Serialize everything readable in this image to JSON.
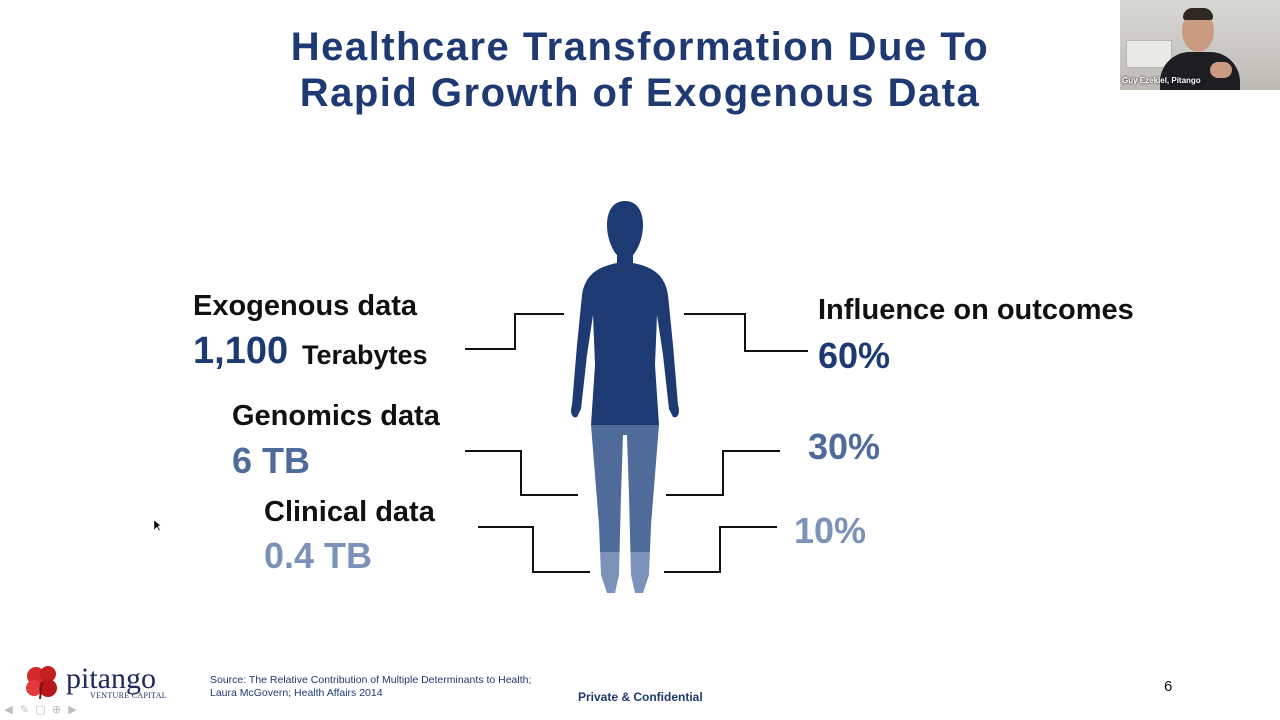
{
  "slide": {
    "title_line1": "Healthcare Transformation Due To",
    "title_line2": "Rapid Growth of Exogenous Data",
    "page_number": "6",
    "confidential": "Private & Confidential",
    "source_line1": "Source: The Relative Contribution of Multiple Determinants to Health;",
    "source_line2": "Laura McGovern; Health Affairs 2014"
  },
  "left": {
    "exogenous_label": "Exogenous data",
    "exogenous_value": "1,100",
    "exogenous_unit": "Terabytes",
    "genomics_label": "Genomics data",
    "genomics_value": "6 TB",
    "clinical_label": "Clinical data",
    "clinical_value": "0.4 TB"
  },
  "right": {
    "influence_label": "Influence on outcomes",
    "influence_60": "60%",
    "influence_30": "30%",
    "influence_10": "10%"
  },
  "colors": {
    "title": "#1f3a73",
    "tier1": "#1e3a72",
    "tier2": "#4f6b9a",
    "tier3": "#7d92b8"
  },
  "logo": {
    "name": "pitango",
    "sub": "VENTURE CAPITAL"
  },
  "webcam": {
    "name_label": "Guy Ezekiel, Pitango"
  },
  "toolbar": {
    "icons": [
      "prev-arrow-icon",
      "pen-icon",
      "slides-icon",
      "zoom-icon",
      "next-arrow-icon"
    ]
  }
}
